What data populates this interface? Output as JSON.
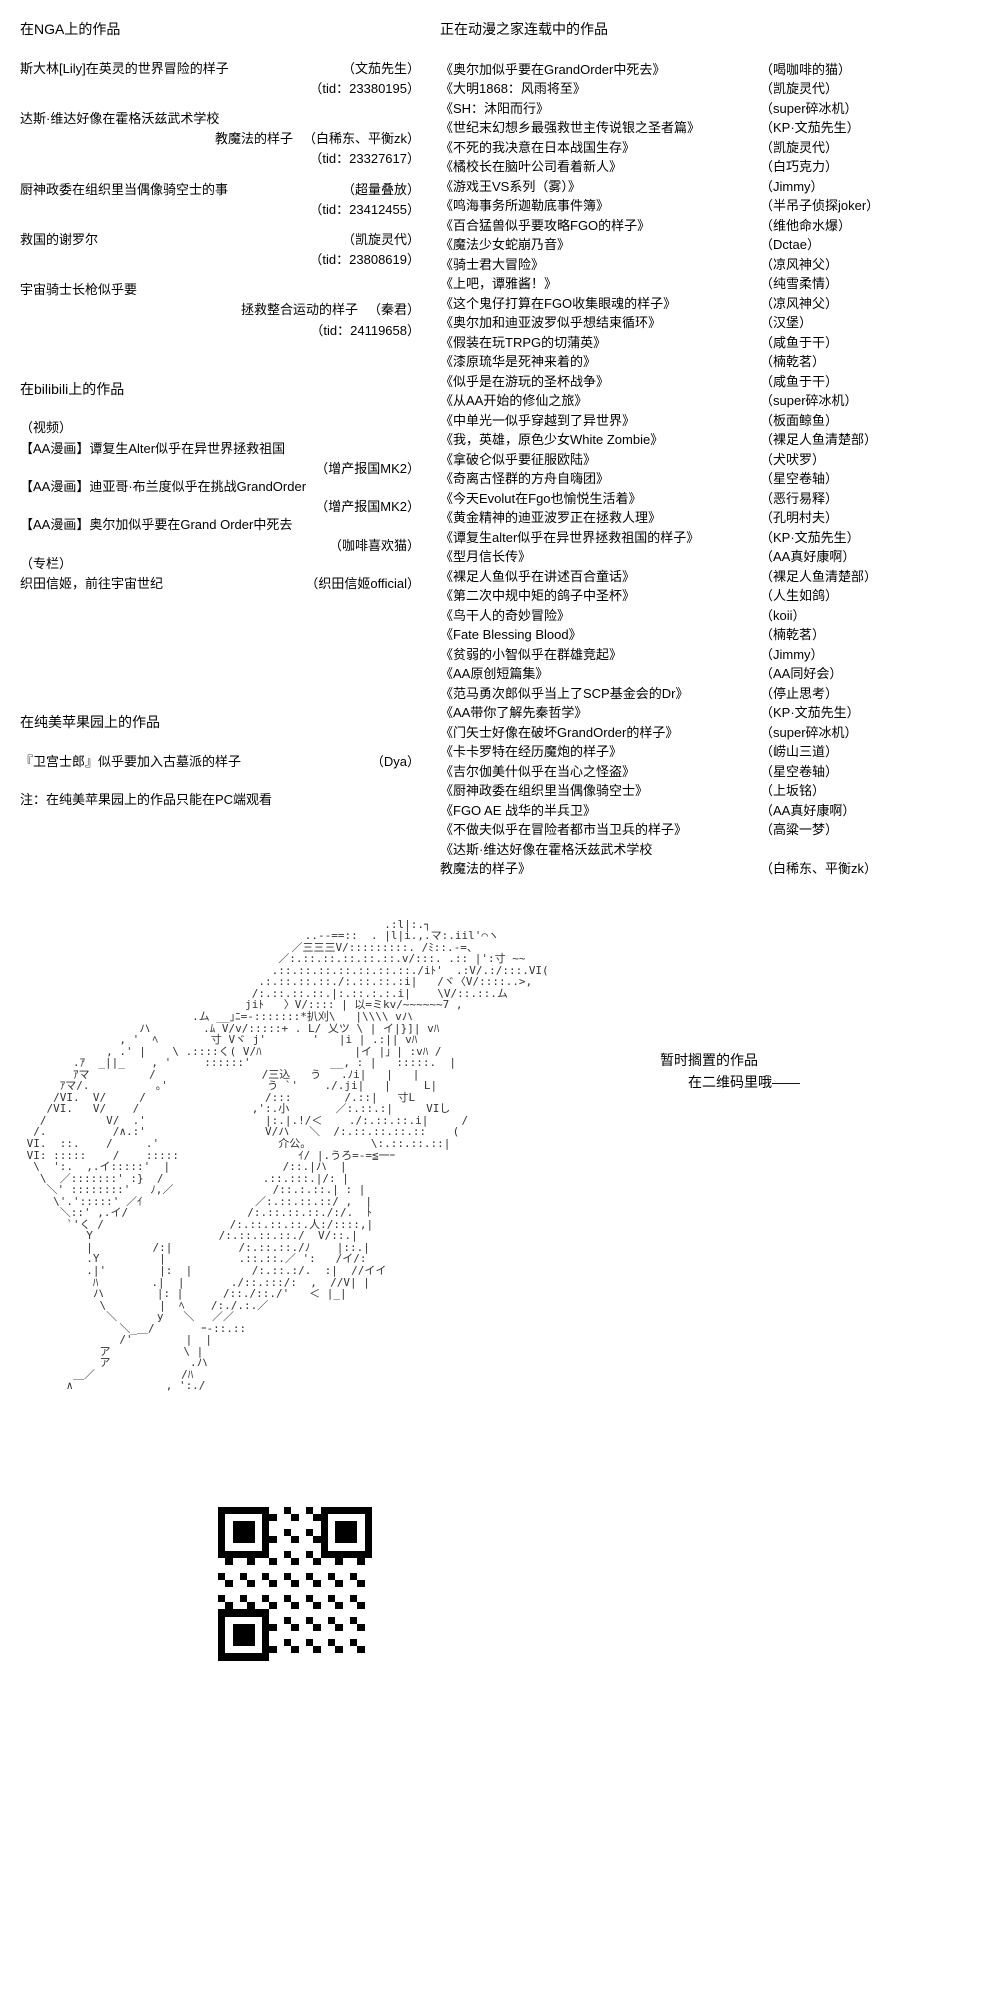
{
  "colors": {
    "text": "#000000",
    "background": "#ffffff",
    "ascii": "#333333"
  },
  "typography": {
    "body_size": 14,
    "row_size": 13,
    "ascii_size": 11
  },
  "left": {
    "nga": {
      "title": "在NGA上的作品",
      "items": [
        {
          "title": "斯大林[Lily]在英灵的世界冒险的样子",
          "author": "（文茄先生）",
          "tid": "（tid：23380195）"
        },
        {
          "title": "达斯·维达好像在霍格沃兹武术学校",
          "title2": "教魔法的样子",
          "author": "（白稀东、平衡zk）",
          "tid": "（tid：23327617）"
        },
        {
          "title": "厨神政委在组织里当偶像骑空士的事",
          "author": "（超量叠放）",
          "tid": "（tid：23412455）"
        },
        {
          "title": "救国的谢罗尔",
          "author": "（凯旋灵代）",
          "tid": "（tid：23808619）"
        },
        {
          "title": "宇宙骑士长枪似乎要",
          "title2": "拯救整合运动的样子",
          "author": "（秦君）",
          "tid": "（tid：24119658）"
        }
      ]
    },
    "bilibili": {
      "title": "在bilibili上的作品",
      "video_label": "（视频）",
      "videos": [
        {
          "title": "【AA漫画】谭复生Alter似乎在异世界拯救祖国",
          "author": "（增产报国MK2）"
        },
        {
          "title": "【AA漫画】迪亚哥·布兰度似乎在挑战GrandOrder",
          "author": "（增产报国MK2）"
        },
        {
          "title": "【AA漫画】奥尔加似乎要在Grand Order中死去",
          "author": "（咖啡喜欢猫）"
        }
      ],
      "column_label": "（专栏）",
      "columns": [
        {
          "title": "织田信姬，前往宇宙世纪",
          "author": "（织田信姬official）"
        }
      ]
    },
    "chunmei": {
      "title": "在纯美苹果园上的作品",
      "items": [
        {
          "title": "『卫宫士郎』似乎要加入古墓派的样子",
          "author": "（Dya）"
        }
      ],
      "note": "注：在纯美苹果园上的作品只能在PC端观看"
    }
  },
  "right": {
    "title": "正在动漫之家连载中的作品",
    "items": [
      {
        "t": "《奥尔加似乎要在GrandOrder中死去》",
        "a": "（喝咖啡的猫）"
      },
      {
        "t": "《大明1868：风雨将至》",
        "a": "（凯旋灵代）"
      },
      {
        "t": "《SH：沐阳而行》",
        "a": "（super碎冰机）"
      },
      {
        "t": "《世纪末幻想乡最强救世主传说银之圣者篇》",
        "a": "（KP·文茄先生）"
      },
      {
        "t": "《不死的我决意在日本战国生存》",
        "a": "（凯旋灵代）"
      },
      {
        "t": "《橘校长在脑叶公司看着新人》",
        "a": "（白巧克力）"
      },
      {
        "t": "《游戏王VS系列（雾）》",
        "a": "（Jimmy）"
      },
      {
        "t": "《鸣海事务所迦勒底事件簿》",
        "a": "（半吊子侦探joker）"
      },
      {
        "t": "《百合猛兽似乎要攻略FGO的样子》",
        "a": "（维他命水爆）"
      },
      {
        "t": "《魔法少女蛇崩乃音》",
        "a": "（Dctae）"
      },
      {
        "t": "《骑士君大冒险》",
        "a": "（凉风神父）"
      },
      {
        "t": "《上吧，谭雅酱！》",
        "a": "（纯雪柔情）"
      },
      {
        "t": "《这个鬼仔打算在FGO收集眼魂的样子》",
        "a": "（凉风神父）"
      },
      {
        "t": "《奥尔加和迪亚波罗似乎想结束循环》",
        "a": "（汉堡）"
      },
      {
        "t": "《假装在玩TRPG的切蒲英》",
        "a": "（咸鱼于干）"
      },
      {
        "t": "《漆原琉华是死神来着的》",
        "a": "（楠乾茗）"
      },
      {
        "t": "《似乎是在游玩的圣杯战争》",
        "a": "（咸鱼于干）"
      },
      {
        "t": "《从AA开始的修仙之旅》",
        "a": "（super碎冰机）"
      },
      {
        "t": "《中单光一似乎穿越到了异世界》",
        "a": "（板面鲸鱼）"
      },
      {
        "t": "《我，英雄，原色少女White Zombie》",
        "a": "（裸足人鱼清楚部）"
      },
      {
        "t": "《拿破仑似乎要征服欧陆》",
        "a": "（犬吠罗）"
      },
      {
        "t": "《奇离古怪群的方舟自嗨团》",
        "a": "（星空卷轴）"
      },
      {
        "t": "《今天Evolut在Fgo也愉悦生活着》",
        "a": "（恶行易释）"
      },
      {
        "t": "《黄金精神的迪亚波罗正在拯救人理》",
        "a": "（孔明村夫）"
      },
      {
        "t": "《谭复生alter似乎在异世界拯救祖国的样子》",
        "a": "（KP·文茄先生）"
      },
      {
        "t": "《型月信长传》",
        "a": "（AA真好康啊）"
      },
      {
        "t": "《裸足人鱼似乎在讲述百合童话》",
        "a": "（裸足人鱼清楚部）"
      },
      {
        "t": "《第二次中规中矩的鸽子中圣杯》",
        "a": "（人生如鸽）"
      },
      {
        "t": "《鸟干人的奇妙冒险》",
        "a": "（koii）"
      },
      {
        "t": "《Fate Blessing Blood》",
        "a": "（楠乾茗）"
      },
      {
        "t": "《贫弱的小智似乎在群雄竞起》",
        "a": "（Jimmy）"
      },
      {
        "t": "《AA原创短篇集》",
        "a": "（AA同好会）"
      },
      {
        "t": "《范马勇次郎似乎当上了SCP基金会的Dr》",
        "a": "（停止思考）"
      },
      {
        "t": "《AA带你了解先秦哲学》",
        "a": "（KP·文茄先生）"
      },
      {
        "t": "《门矢士好像在破坏GrandOrder的样子》",
        "a": "（super碎冰机）"
      },
      {
        "t": "《卡卡罗特在经历魔炮的样子》",
        "a": "（崂山三道）"
      },
      {
        "t": "《吉尔伽美什似乎在当心之怪盗》",
        "a": "（星空卷轴）"
      },
      {
        "t": "《厨神政委在组织里当偶像骑空士》",
        "a": "（上坂铭）"
      },
      {
        "t": "《FGO AE 战华的半兵卫》",
        "a": "（AA真好康啊）"
      },
      {
        "t": "《不做夫似乎在冒险者都市当卫兵的样子》",
        "a": "（高粱一梦）"
      },
      {
        "t": "《达斯·维达好像在霍格沃兹武术学校",
        "a": ""
      },
      {
        "t": "                                          教魔法的样子》",
        "a": "（白稀东、平衡zk）"
      }
    ]
  },
  "ascii_note": {
    "line1": "暂时搁置的作品",
    "line2": "　　在二维码里哦——"
  }
}
